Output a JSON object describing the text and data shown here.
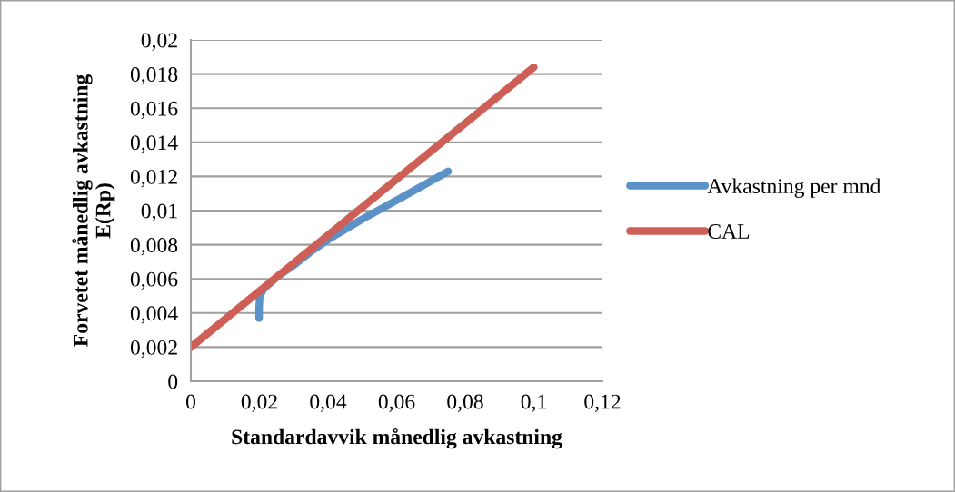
{
  "chart_data": {
    "type": "line",
    "xlabel": "Standardavvik månedlig avkastning",
    "ylabel": "Forvetet månedlig avkastning\nE(Rp)",
    "series": [
      {
        "name": "Avkastning per mnd",
        "color": "#5b93c9",
        "x": [
          0.0199,
          0.0199,
          0.0201,
          0.0212,
          0.025,
          0.03,
          0.035,
          0.04,
          0.05,
          0.06,
          0.075
        ],
        "values": [
          0.0037,
          0.0043,
          0.005,
          0.0054,
          0.0061,
          0.0068,
          0.0076,
          0.0083,
          0.0095,
          0.0106,
          0.0123
        ]
      },
      {
        "name": "CAL",
        "color": "#cd5f57",
        "x": [
          0,
          0.1
        ],
        "values": [
          0.002,
          0.0184
        ]
      }
    ],
    "xlim": [
      0,
      0.12
    ],
    "ylim": [
      0,
      0.02
    ],
    "xticks": [
      0,
      {
        "value": 0.02,
        "label": "0,02"
      },
      {
        "value": 0.04,
        "label": "0,04"
      },
      {
        "value": 0.06,
        "label": "0,06"
      },
      {
        "value": 0.08,
        "label": "0,08"
      },
      {
        "value": 0.1,
        "label": "0,1"
      },
      {
        "value": 0.12,
        "label": "0,12"
      }
    ],
    "yticks": [
      0,
      {
        "value": 0.002,
        "label": "0,002"
      },
      {
        "value": 0.004,
        "label": "0,004"
      },
      {
        "value": 0.006,
        "label": "0,006"
      },
      {
        "value": 0.008,
        "label": "0,008"
      },
      {
        "value": 0.01,
        "label": "0,01"
      },
      {
        "value": 0.012,
        "label": "0,012"
      },
      {
        "value": 0.014,
        "label": "0,014"
      },
      {
        "value": 0.016,
        "label": "0,016"
      },
      {
        "value": 0.018,
        "label": "0,018"
      },
      {
        "value": 0.02,
        "label": "0,02"
      }
    ],
    "grid": "y",
    "legend": "right",
    "marker": "none",
    "line_style": "solid"
  }
}
